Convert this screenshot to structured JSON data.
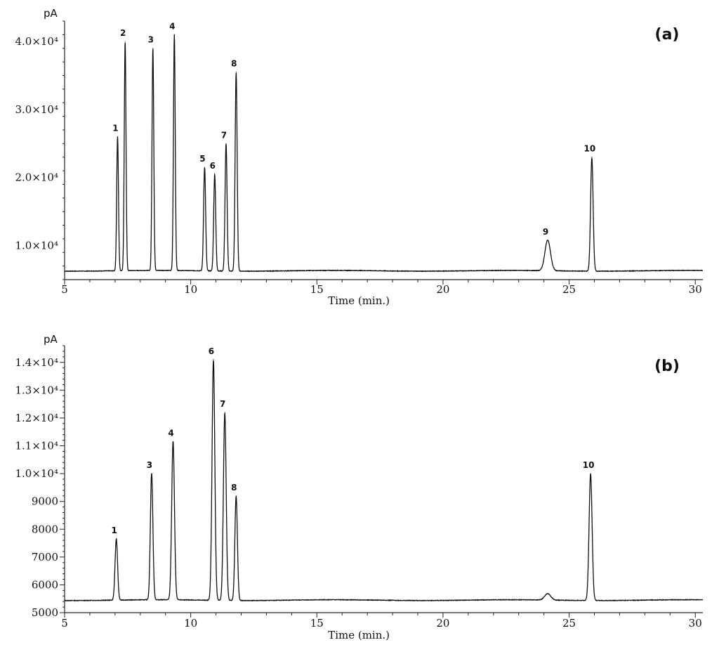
{
  "chart_data": [
    {
      "type": "line",
      "panel_label": "(a)",
      "ylabel": "pA",
      "xlabel": "Time (min.)",
      "xlim": [
        5,
        30.3
      ],
      "ylim": [
        5000,
        43000
      ],
      "x_ticks": [
        "5",
        "10",
        "15",
        "20",
        "25",
        "30"
      ],
      "y_ticks": [
        {
          "value": 10000,
          "label": "1.0×10⁴"
        },
        {
          "value": 20000,
          "label": "2.0×10⁴"
        },
        {
          "value": 30000,
          "label": "3.0×10⁴"
        },
        {
          "value": 40000,
          "label": "4.0×10⁴"
        }
      ],
      "baseline": 6300,
      "peaks": [
        {
          "label": "1",
          "time": 7.1,
          "height": 26000,
          "width": 0.035
        },
        {
          "label": "2",
          "time": 7.4,
          "height": 40000,
          "width": 0.035
        },
        {
          "label": "3",
          "time": 8.5,
          "height": 39000,
          "width": 0.035
        },
        {
          "label": "4",
          "time": 9.35,
          "height": 41000,
          "width": 0.035
        },
        {
          "label": "5",
          "time": 10.55,
          "height": 21500,
          "width": 0.04
        },
        {
          "label": "6",
          "time": 10.95,
          "height": 20500,
          "width": 0.04
        },
        {
          "label": "7",
          "time": 11.4,
          "height": 25000,
          "width": 0.04
        },
        {
          "label": "8",
          "time": 11.8,
          "height": 35500,
          "width": 0.04
        },
        {
          "label": "9",
          "time": 24.15,
          "height": 10800,
          "width": 0.11
        },
        {
          "label": "10",
          "time": 25.9,
          "height": 23000,
          "width": 0.05
        }
      ]
    },
    {
      "type": "line",
      "panel_label": "(b)",
      "ylabel": "pA",
      "xlabel": "Time (min.)",
      "xlim": [
        5,
        30.3
      ],
      "ylim": [
        5000,
        14600
      ],
      "x_ticks": [
        "5",
        "10",
        "15",
        "20",
        "25",
        "30"
      ],
      "y_ticks": [
        {
          "value": 5000,
          "label": "5000"
        },
        {
          "value": 6000,
          "label": "6000"
        },
        {
          "value": 7000,
          "label": "7000"
        },
        {
          "value": 8000,
          "label": "8000"
        },
        {
          "value": 9000,
          "label": "9000"
        },
        {
          "value": 10000,
          "label": "1.0×10⁴"
        },
        {
          "value": 11000,
          "label": "1.1×10⁴"
        },
        {
          "value": 12000,
          "label": "1.2×10⁴"
        },
        {
          "value": 13000,
          "label": "1.3×10⁴"
        },
        {
          "value": 14000,
          "label": "1.4×10⁴"
        }
      ],
      "baseline": 5450,
      "peaks": [
        {
          "label": "1",
          "time": 7.05,
          "height": 7650,
          "width": 0.05
        },
        {
          "label": "3",
          "time": 8.45,
          "height": 10000,
          "width": 0.05
        },
        {
          "label": "4",
          "time": 9.3,
          "height": 11150,
          "width": 0.055
        },
        {
          "label": "6",
          "time": 10.9,
          "height": 14100,
          "width": 0.055
        },
        {
          "label": "7",
          "time": 11.35,
          "height": 12200,
          "width": 0.055
        },
        {
          "label": "8",
          "time": 11.8,
          "height": 9200,
          "width": 0.05
        },
        {
          "label": "",
          "time": 24.15,
          "height": 5680,
          "width": 0.12
        },
        {
          "label": "10",
          "time": 25.85,
          "height": 10000,
          "width": 0.06
        }
      ]
    }
  ]
}
